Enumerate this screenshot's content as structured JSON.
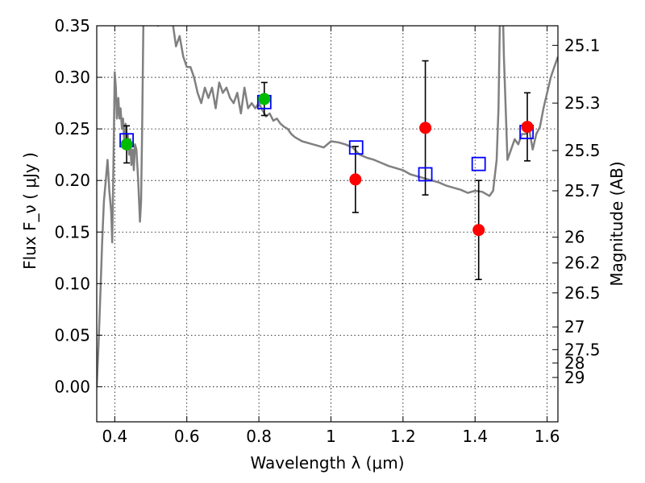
{
  "chart_data": {
    "type": "scatter",
    "title": "",
    "xlabel": "Wavelength  λ (μm)",
    "ylabel": "Flux  F_ν  ( μJy )",
    "y2label": "Magnitude (AB)",
    "xlim": [
      0.35,
      1.63
    ],
    "ylim": [
      -0.034,
      0.35
    ],
    "grid": true,
    "x_ticks": [
      {
        "value": 0.4,
        "label": "0.4"
      },
      {
        "value": 0.6,
        "label": "0.6"
      },
      {
        "value": 0.8,
        "label": "0.8"
      },
      {
        "value": 1.0,
        "label": "1"
      },
      {
        "value": 1.2,
        "label": "1.2"
      },
      {
        "value": 1.4,
        "label": "1.4"
      },
      {
        "value": 1.6,
        "label": "1.6"
      }
    ],
    "y_ticks": [
      {
        "value": 0.0,
        "label": "0.00"
      },
      {
        "value": 0.05,
        "label": "0.05"
      },
      {
        "value": 0.1,
        "label": "0.10"
      },
      {
        "value": 0.15,
        "label": "0.15"
      },
      {
        "value": 0.2,
        "label": "0.20"
      },
      {
        "value": 0.25,
        "label": "0.25"
      },
      {
        "value": 0.3,
        "label": "0.30"
      },
      {
        "value": 0.35,
        "label": "0.35"
      }
    ],
    "y2_ticks": [
      {
        "label": "25.1",
        "flux": 0.331
      },
      {
        "label": "25.3",
        "flux": 0.275
      },
      {
        "label": "25.5",
        "flux": 0.229
      },
      {
        "label": "25.7",
        "flux": 0.19
      },
      {
        "label": "26",
        "flux": 0.145
      },
      {
        "label": "26.2",
        "flux": 0.12
      },
      {
        "label": "26.5",
        "flux": 0.091
      },
      {
        "label": "27",
        "flux": 0.058
      },
      {
        "label": "27.5",
        "flux": 0.036
      },
      {
        "label": "28",
        "flux": 0.023
      },
      {
        "label": "29",
        "flux": 0.009
      }
    ],
    "series": [
      {
        "kind": "line",
        "color": "#808080",
        "x": [
          0.35,
          0.355,
          0.36,
          0.365,
          0.37,
          0.375,
          0.38,
          0.385,
          0.39,
          0.393,
          0.396,
          0.4,
          0.403,
          0.406,
          0.41,
          0.413,
          0.416,
          0.42,
          0.423,
          0.426,
          0.43,
          0.433,
          0.436,
          0.44,
          0.443,
          0.446,
          0.45,
          0.453,
          0.456,
          0.46,
          0.465,
          0.47,
          0.473,
          0.476,
          0.48,
          0.485,
          0.49,
          0.5,
          0.51,
          0.52,
          0.53,
          0.54,
          0.55,
          0.56,
          0.57,
          0.58,
          0.59,
          0.6,
          0.61,
          0.62,
          0.63,
          0.64,
          0.65,
          0.66,
          0.67,
          0.68,
          0.69,
          0.7,
          0.71,
          0.72,
          0.73,
          0.74,
          0.75,
          0.76,
          0.77,
          0.78,
          0.79,
          0.8,
          0.81,
          0.82,
          0.83,
          0.84,
          0.85,
          0.86,
          0.87,
          0.88,
          0.89,
          0.9,
          0.92,
          0.94,
          0.96,
          0.98,
          1.0,
          1.02,
          1.04,
          1.06,
          1.08,
          1.1,
          1.12,
          1.14,
          1.16,
          1.18,
          1.2,
          1.22,
          1.24,
          1.26,
          1.28,
          1.3,
          1.32,
          1.34,
          1.36,
          1.38,
          1.4,
          1.42,
          1.44,
          1.45,
          1.46,
          1.465,
          1.47,
          1.475,
          1.48,
          1.49,
          1.5,
          1.51,
          1.52,
          1.53,
          1.54,
          1.55,
          1.56,
          1.57,
          1.58,
          1.59,
          1.6,
          1.61,
          1.62,
          1.63
        ],
        "y": [
          0.0,
          0.04,
          0.09,
          0.14,
          0.18,
          0.2,
          0.22,
          0.19,
          0.17,
          0.14,
          0.21,
          0.305,
          0.29,
          0.26,
          0.28,
          0.26,
          0.27,
          0.25,
          0.26,
          0.24,
          0.255,
          0.23,
          0.245,
          0.225,
          0.24,
          0.215,
          0.23,
          0.21,
          0.235,
          0.23,
          0.2,
          0.16,
          0.18,
          0.25,
          0.37,
          0.39,
          0.38,
          0.36,
          0.37,
          0.35,
          0.37,
          0.36,
          0.36,
          0.355,
          0.33,
          0.34,
          0.32,
          0.31,
          0.31,
          0.3,
          0.285,
          0.275,
          0.29,
          0.28,
          0.29,
          0.27,
          0.295,
          0.285,
          0.29,
          0.28,
          0.275,
          0.285,
          0.265,
          0.29,
          0.27,
          0.275,
          0.27,
          0.275,
          0.268,
          0.262,
          0.265,
          0.258,
          0.26,
          0.255,
          0.252,
          0.25,
          0.245,
          0.242,
          0.238,
          0.236,
          0.234,
          0.232,
          0.238,
          0.237,
          0.235,
          0.232,
          0.225,
          0.222,
          0.22,
          0.217,
          0.214,
          0.212,
          0.21,
          0.206,
          0.204,
          0.202,
          0.2,
          0.198,
          0.195,
          0.193,
          0.191,
          0.188,
          0.19,
          0.189,
          0.185,
          0.19,
          0.22,
          0.27,
          0.38,
          0.4,
          0.32,
          0.22,
          0.23,
          0.24,
          0.235,
          0.245,
          0.245,
          0.25,
          0.23,
          0.245,
          0.252,
          0.27,
          0.285,
          0.3,
          0.31,
          0.32
        ]
      },
      {
        "kind": "open-square",
        "color": "#0000ff",
        "x": [
          0.433,
          0.815,
          1.07,
          1.262,
          1.41,
          1.543
        ],
        "y": [
          0.239,
          0.276,
          0.232,
          0.206,
          0.216,
          0.247
        ]
      },
      {
        "kind": "filled-circle",
        "color": "#ff0000",
        "x": [
          1.068,
          1.262,
          1.41,
          1.545
        ],
        "y": [
          0.201,
          0.251,
          0.152,
          0.252
        ],
        "yerr": [
          0.032,
          0.065,
          0.048,
          0.033
        ]
      },
      {
        "kind": "filled-circle",
        "color": "#00bb00",
        "x": [
          0.433,
          0.815
        ],
        "y": [
          0.235,
          0.279
        ],
        "yerr": [
          0.018,
          0.016
        ]
      }
    ]
  }
}
